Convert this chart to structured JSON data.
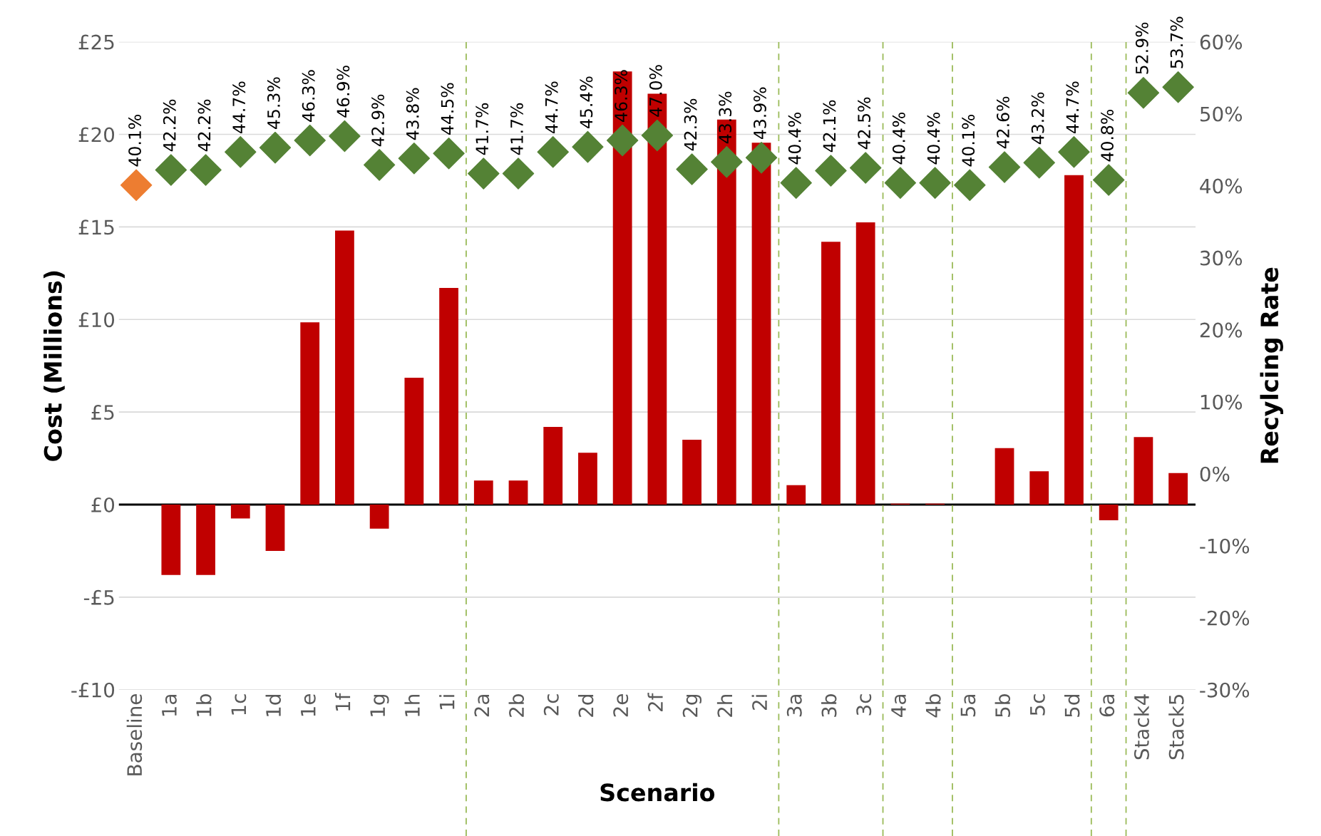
{
  "chart_data": {
    "type": "bar",
    "xlabel": "Scenario",
    "ylabel": "Cost (Millions)",
    "y2label": "Recylcing Rate",
    "categories": [
      "Baseline",
      "1a",
      "1b",
      "1c",
      "1d",
      "1e",
      "1f",
      "1g",
      "1h",
      "1i",
      "2a",
      "2b",
      "2c",
      "2d",
      "2e",
      "2f",
      "2g",
      "2h",
      "2i",
      "3a",
      "3b",
      "3c",
      "4a",
      "4b",
      "5a",
      "5b",
      "5c",
      "5d",
      "6a",
      "Stack4",
      "Stack5"
    ],
    "series": [
      {
        "color": "#c00000",
        "values": [
          0,
          -3.8,
          -3.8,
          -0.75,
          -2.5,
          9.85,
          14.8,
          -1.3,
          6.85,
          11.7,
          1.3,
          1.3,
          4.2,
          2.8,
          23.4,
          22.2,
          3.5,
          20.8,
          19.55,
          1.05,
          14.2,
          15.25,
          0.05,
          0.05,
          0,
          3.05,
          1.8,
          17.8,
          -0.85,
          3.65,
          1.7
        ]
      },
      {
        "type": "scatter",
        "axis": "y2",
        "marker": "diamond",
        "data_labels": true,
        "colors": [
          "#ed7d31",
          "#548235",
          "#548235",
          "#548235",
          "#548235",
          "#548235",
          "#548235",
          "#548235",
          "#548235",
          "#548235",
          "#548235",
          "#548235",
          "#548235",
          "#548235",
          "#548235",
          "#548235",
          "#548235",
          "#548235",
          "#548235",
          "#548235",
          "#548235",
          "#548235",
          "#548235",
          "#548235",
          "#548235",
          "#548235",
          "#548235",
          "#548235",
          "#548235",
          "#548235",
          "#548235"
        ],
        "values": [
          40.1,
          42.2,
          42.2,
          44.7,
          45.3,
          46.3,
          46.9,
          42.9,
          43.8,
          44.5,
          41.7,
          41.7,
          44.7,
          45.4,
          46.3,
          47.0,
          42.3,
          43.3,
          43.9,
          40.4,
          42.1,
          42.5,
          40.4,
          40.4,
          40.1,
          42.6,
          43.2,
          44.7,
          40.8,
          52.9,
          53.7
        ],
        "value_labels": [
          "40.1%",
          "42.2%",
          "42.2%",
          "44.7%",
          "45.3%",
          "46.3%",
          "46.9%",
          "42.9%",
          "43.8%",
          "44.5%",
          "41.7%",
          "41.7%",
          "44.7%",
          "45.4%",
          "46.3%",
          "47.0%",
          "42.3%",
          "43.3%",
          "43.9%",
          "40.4%",
          "42.1%",
          "42.5%",
          "40.4%",
          "40.4%",
          "40.1%",
          "42.6%",
          "43.2%",
          "44.7%",
          "40.8%",
          "52.9%",
          "53.7%"
        ]
      }
    ],
    "ylim": [
      -10,
      25
    ],
    "yticks": [
      {
        "value": -10,
        "label": "-£10"
      },
      {
        "value": -5,
        "label": "-£5"
      },
      {
        "value": 0,
        "label": "£0"
      },
      {
        "value": 5,
        "label": "£5"
      },
      {
        "value": 10,
        "label": "£10"
      },
      {
        "value": 15,
        "label": "£15"
      },
      {
        "value": 20,
        "label": "£20"
      },
      {
        "value": 25,
        "label": "£25"
      }
    ],
    "y2lim": [
      -30,
      60
    ],
    "y2ticks": [
      {
        "value": -30,
        "label": "-30%"
      },
      {
        "value": -20,
        "label": "-20%"
      },
      {
        "value": -10,
        "label": "-10%"
      },
      {
        "value": 0,
        "label": "0%"
      },
      {
        "value": 10,
        "label": "10%"
      },
      {
        "value": 20,
        "label": "20%"
      },
      {
        "value": 30,
        "label": "30%"
      },
      {
        "value": 40,
        "label": "40%"
      },
      {
        "value": 50,
        "label": "50%"
      },
      {
        "value": 60,
        "label": "60%"
      }
    ],
    "grid": "y",
    "legend": false,
    "ref_lines": [
      {
        "axis": "y",
        "value": 0,
        "color": "#000000",
        "line_style": "solid"
      }
    ]
  }
}
